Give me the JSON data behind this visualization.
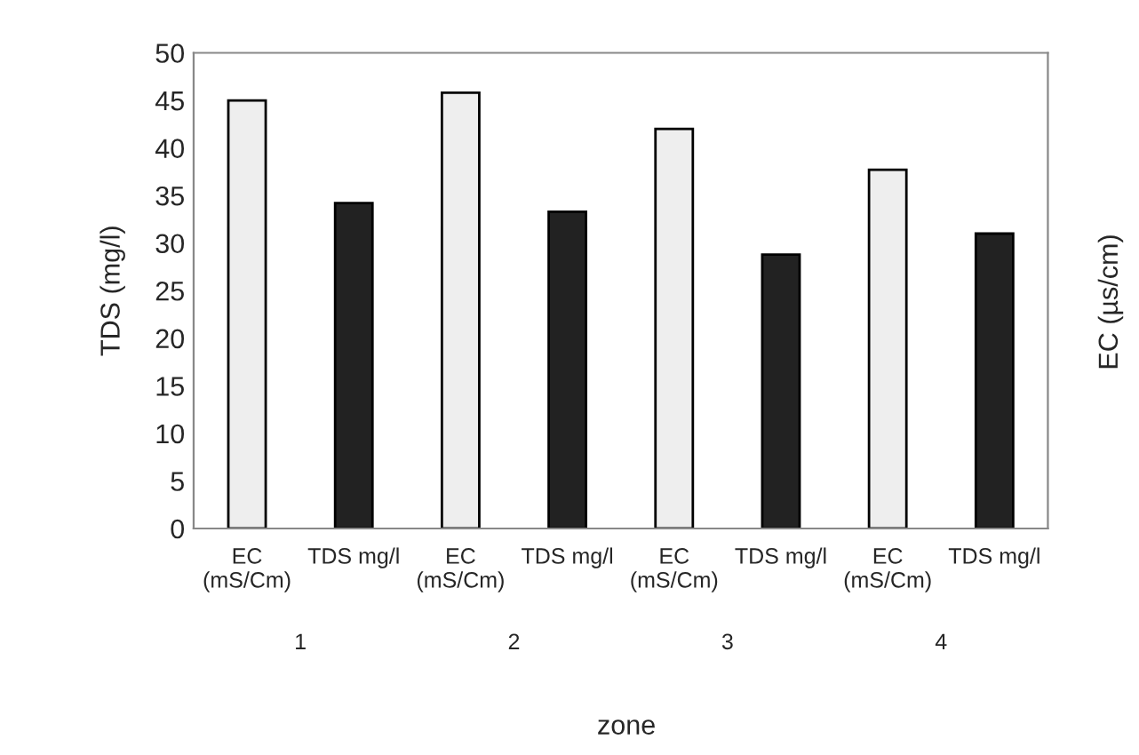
{
  "chart_data": {
    "type": "bar",
    "categories": [
      "1",
      "2",
      "3",
      "4"
    ],
    "series": [
      {
        "name": "EC\n(mS/Cm)",
        "color": "#eeeeee",
        "values": [
          45,
          45.8,
          42,
          37.7
        ]
      },
      {
        "name": "TDS mg/l",
        "color": "#222222",
        "values": [
          34.2,
          33.3,
          28.8,
          31
        ]
      }
    ],
    "xlabel": "zone",
    "ylabel": "TDS (mg/l)",
    "y2label": "EC (µs/cm)",
    "ylim": [
      0,
      50
    ],
    "yticks": [
      0,
      5,
      10,
      15,
      20,
      25,
      30,
      35,
      40,
      45,
      50
    ],
    "grid": false,
    "legend": false
  }
}
